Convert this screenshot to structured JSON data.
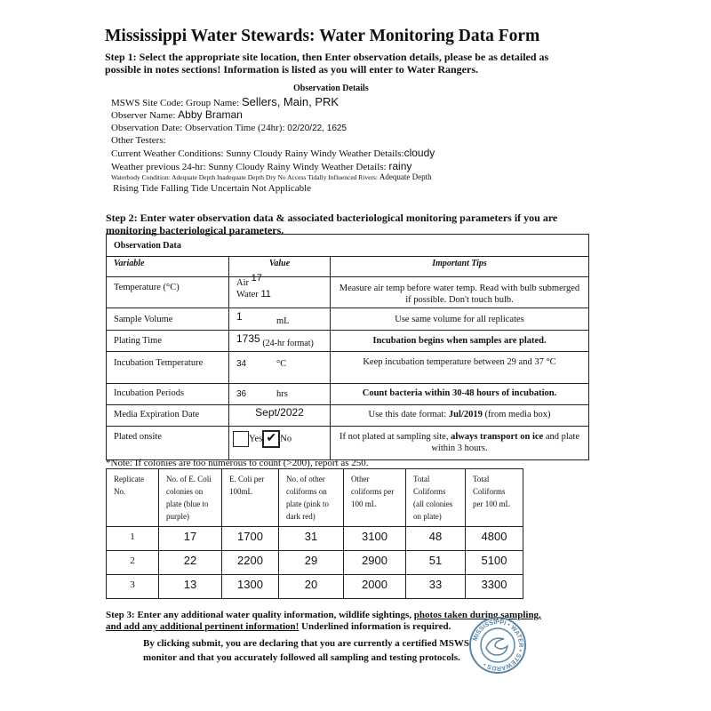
{
  "title": "Mississippi Water Stewards: Water Monitoring Data Form",
  "step1": "Step 1: Select the appropriate site location, then Enter observation details, please be as detailed as  possible in notes sections! Information is listed as you will enter to Water Rangers.",
  "details": {
    "heading": "Observation Details",
    "site_label": "MSWS Site Code: Group Name:",
    "site_value": "Sellers, Main, PRK",
    "observer_label": "Observer Name:",
    "observer_value": "Abby Braman",
    "date_label": "Observation Date: Observation Time (24hr):",
    "date_value": "02/20/22, 1625",
    "testers_label": "Other Testers:",
    "weather_label": "Current Weather Conditions: Sunny Cloudy Rainy Windy Weather Details:",
    "weather_value": "cloudy",
    "prev_label": "Weather previous 24-hr: Sunny Cloudy Rainy Windy Weather Details:",
    "prev_value": "rainy",
    "waterbody_label": "Waterbody Condition: Adequate Depth Inadequate Depth Dry No Access Tidally Influenced Rivers:",
    "waterbody_value": "Adequate Depth",
    "tide_label": "Rising Tide Falling Tide Uncertain Not Applicable"
  },
  "step2": "Step 2: Enter water observation data & associated bacteriological monitoring parameters if you are  monitoring bacteriological parameters.",
  "obs": {
    "title": "Observation Data",
    "headers": [
      "Variable",
      "Value",
      "Important Tips"
    ],
    "temp": {
      "label": "Temperature (°C)",
      "air_label": "Air",
      "air": "17",
      "water_label": "Water",
      "water": "11",
      "tip": "Measure air temp before water temp. Read with bulb  submerged if possible. Don't touch bulb."
    },
    "volume": {
      "label": "Sample Volume",
      "value": "1",
      "unit": "mL",
      "tip": "Use same volume for all replicates"
    },
    "plating": {
      "label": "Plating Time",
      "value": "1735",
      "unit": "(24-hr format)",
      "tip": "Incubation begins when samples are plated."
    },
    "inc_temp": {
      "label": "Incubation Temperature",
      "value": "34",
      "unit": "°C",
      "tip": "Keep incubation temperature between 29 and 37 °C"
    },
    "inc_period": {
      "label": "Incubation Periods",
      "value": "36",
      "unit": "hrs",
      "tip": "Count bacteria within 30-48 hours of incubation."
    },
    "media": {
      "label": "Media Expiration  Date",
      "value": "Sept/2022",
      "tip_pre": "Use this date format: ",
      "tip_bold": "Jul/2019",
      "tip_post": " (from media box)"
    },
    "onsite": {
      "label": "Plated onsite",
      "yes": "Yes",
      "no": "No",
      "checked": "No",
      "check_mark": "✔",
      "tip_pre": "If not plated at sampling site, ",
      "tip_bold": "always transport on  ice",
      "tip_post": " and plate within 3 hours."
    }
  },
  "note": "*Note: If colonies are too numerous to count (>200), report as 250.",
  "replicates": {
    "headers": [
      "Replicate No.",
      "No. of E. Coli  colonies on plate (blue to purple)",
      "E. Coli per 100mL",
      "No. of other coliforms on plate (pink to dark red)",
      "Other coliforms per 100 mL",
      "Total Coliforms (all colonies on plate)",
      "Total Coliforms per 100 mL"
    ],
    "rows": [
      [
        "1",
        "17",
        "1700",
        "31",
        "3100",
        "48",
        "4800"
      ],
      [
        "2",
        "22",
        "2200",
        "29",
        "2900",
        "51",
        "5100"
      ],
      [
        "3",
        "13",
        "1300",
        "20",
        "2000",
        "33",
        "3300"
      ]
    ]
  },
  "step3": {
    "pre": "Step 3: Enter any additional water quality information, wildlife sightings, ",
    "u1": "photos taken ",
    "u2": "during",
    "u3": "sampling,",
    "u4": "and add any additional pertinent information!",
    "post": " Underlined information  is required."
  },
  "declaration": "By clicking submit, you are declaring that you are currently a certified MSWS monitor and that you accurately followed all sampling and testing protocols.",
  "seal": {
    "text": "MISSISSIPPI • WATER • STEWARDS",
    "color": "#5b86a8"
  }
}
